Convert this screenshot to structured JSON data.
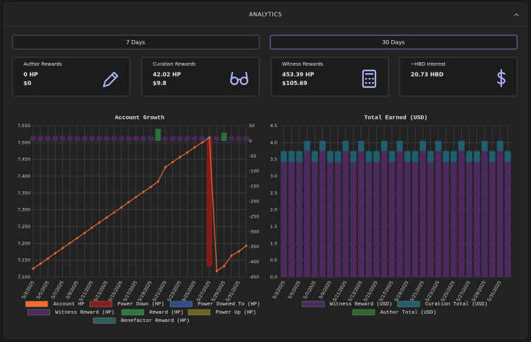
{
  "header": {
    "title": "ANALYTICS"
  },
  "tabs": [
    "7 Days",
    "30 Days"
  ],
  "cards": [
    {
      "title": "Author Rewards",
      "lines": [
        "0 HP",
        "$0"
      ]
    },
    {
      "title": "Curation Rewards",
      "lines": [
        "42.02 HP",
        "$9.8"
      ]
    },
    {
      "title": "Witness Rewards",
      "lines": [
        "453.39 HP",
        "$105.69"
      ]
    },
    {
      "title": "~HBD Interest",
      "lines": [
        "20.73 HBD"
      ]
    }
  ],
  "chart_data": [
    {
      "type": "combo",
      "title": "Account Growth",
      "categories": [
        "5/3/2025",
        null,
        "5/5/2025",
        null,
        "5/7/2025",
        null,
        "5/9/2025",
        null,
        "5/11/2025",
        null,
        "5/13/2025",
        null,
        "5/15/2025",
        null,
        "5/17/2025",
        null,
        "5/19/2025",
        null,
        "5/21/2025",
        null,
        "5/23/2025",
        null,
        "5/25/2025",
        null,
        "5/27/2025",
        null,
        "5/29/2025",
        null,
        "5/31/2025",
        null
      ],
      "series": [
        {
          "name": "Account HP",
          "color": "#f26b2a",
          "type": "line",
          "values": [
            7125,
            7140,
            7155,
            7171,
            7186,
            7201,
            7216,
            7231,
            7247,
            7262,
            7277,
            7292,
            7307,
            7323,
            7338,
            7353,
            7368,
            7384,
            7427,
            7442,
            7457,
            7471,
            7486,
            7500,
            7515,
            7118,
            7133,
            7164,
            7176,
            7193
          ]
        },
        {
          "name": "Power Down (HP)",
          "color": "#8b1c1c",
          "type": "bar",
          "axis": "y2",
          "values": [
            0,
            0,
            0,
            0,
            0,
            0,
            0,
            0,
            0,
            0,
            0,
            0,
            0,
            0,
            0,
            0,
            0,
            0,
            0,
            0,
            0,
            0,
            0,
            0,
            -415,
            0,
            0,
            0,
            0,
            0
          ]
        },
        {
          "name": "Power Downed To (HP)",
          "color": "#2d4b8e",
          "type": "bar",
          "axis": "y2",
          "values": [
            0,
            0,
            0,
            0,
            0,
            0,
            0,
            0,
            0,
            0,
            0,
            0,
            0,
            0,
            0,
            0,
            0,
            0,
            0,
            0,
            0,
            0,
            0,
            0,
            0,
            0,
            0,
            0,
            0,
            0
          ]
        },
        {
          "name": "Witness Reward (HP)",
          "color": "#4c2a5e",
          "type": "bar",
          "axis": "y2",
          "values": [
            15,
            15,
            15,
            15,
            15,
            15,
            15,
            15,
            15,
            15,
            15,
            15,
            15,
            15,
            15,
            15,
            15,
            15,
            15,
            15,
            15,
            15,
            15,
            15,
            15,
            15,
            15,
            15,
            15,
            15
          ]
        },
        {
          "name": "Reward (HP)",
          "color": "#2a7a3c",
          "type": "bar",
          "axis": "y2",
          "values": [
            0,
            0,
            0,
            0,
            0,
            0,
            0,
            0,
            0,
            0,
            0,
            0,
            0,
            0,
            0,
            0,
            0,
            40,
            0,
            0,
            0,
            0,
            0,
            0,
            0,
            0,
            27,
            0,
            0,
            0
          ]
        },
        {
          "name": "Power Up (HP)",
          "color": "#6b6422",
          "type": "bar",
          "axis": "y2",
          "values": [
            0,
            0,
            0,
            0,
            0,
            0,
            0,
            0,
            0,
            0,
            0,
            0,
            0,
            0,
            0,
            0,
            0,
            0,
            0,
            0,
            0,
            0,
            0,
            0,
            0,
            0,
            0,
            0,
            0,
            0
          ]
        },
        {
          "name": "Benefactor Reward (HP)",
          "color": "#2f5b56",
          "type": "bar",
          "axis": "y2",
          "values": [
            0,
            0,
            0,
            0,
            0,
            0,
            0,
            0,
            0,
            0,
            0,
            0,
            0,
            0,
            0,
            0,
            0,
            0,
            0,
            0,
            0,
            0,
            0,
            0,
            0,
            0,
            0,
            0,
            0,
            0
          ]
        }
      ],
      "ylim": [
        7100,
        7550
      ],
      "yticks": [
        {
          "value": 7100,
          "label": "7,100"
        },
        {
          "value": 7150,
          "label": "7,150"
        },
        {
          "value": 7200,
          "label": "7,200"
        },
        {
          "value": 7250,
          "label": "7,250"
        },
        {
          "value": 7300,
          "label": "7,300"
        },
        {
          "value": 7350,
          "label": "7,350"
        },
        {
          "value": 7400,
          "label": "7,400"
        },
        {
          "value": 7450,
          "label": "7,450"
        },
        {
          "value": 7500,
          "label": "7,500"
        },
        {
          "value": 7550,
          "label": "7,550"
        }
      ],
      "y2lim": [
        -450,
        50
      ],
      "y2ticks": [
        -450,
        -400,
        -350,
        -300,
        -250,
        -200,
        -150,
        -100,
        -50,
        0,
        50
      ],
      "grid": true
    },
    {
      "type": "stacked_bar",
      "title": "Total Earned (USD)",
      "categories": [
        "5/3/2025",
        null,
        "5/5/2025",
        null,
        "5/7/2025",
        null,
        "5/9/2025",
        null,
        "5/11/2025",
        null,
        "5/13/2025",
        null,
        "5/15/2025",
        null,
        "5/17/2025",
        null,
        "5/19/2025",
        null,
        "5/21/2025",
        null,
        "5/23/2025",
        null,
        "5/25/2025",
        null,
        "5/27/2025",
        null,
        "5/29/2025",
        null,
        "5/31/2025",
        null
      ],
      "series": [
        {
          "name": "Witness Reward (USD)",
          "color": "#4c2a5e",
          "values": [
            3.42,
            3.42,
            3.42,
            3.75,
            3.42,
            3.75,
            3.42,
            3.42,
            3.75,
            3.42,
            3.75,
            3.42,
            3.42,
            3.75,
            3.42,
            3.75,
            3.42,
            3.42,
            3.75,
            3.42,
            3.75,
            3.42,
            3.42,
            3.75,
            3.42,
            3.42,
            3.75,
            3.42,
            3.75,
            3.42
          ]
        },
        {
          "name": "Curation Total (USD)",
          "color": "#1f5e6e",
          "values": [
            0.33,
            0.33,
            0.33,
            0.3,
            0.33,
            0.3,
            0.33,
            0.33,
            0.3,
            0.33,
            0.3,
            0.33,
            0.33,
            0.3,
            0.33,
            0.3,
            0.33,
            0.33,
            0.3,
            0.33,
            0.3,
            0.33,
            0.33,
            0.3,
            0.33,
            0.33,
            0.3,
            0.33,
            0.3,
            0.33
          ]
        },
        {
          "name": "Author Total (USD)",
          "color": "#2a6a2a",
          "values": [
            0,
            0,
            0,
            0,
            0,
            0,
            0,
            0,
            0,
            0,
            0,
            0,
            0,
            0,
            0,
            0,
            0,
            0,
            0,
            0,
            0,
            0,
            0,
            0,
            0,
            0,
            0,
            0,
            0,
            0
          ]
        }
      ],
      "ylim": [
        0,
        4.5
      ],
      "yticks": [
        {
          "value": 0,
          "label": "0.0"
        },
        0.5,
        {
          "value": 1,
          "label": "1.0"
        },
        1.5,
        {
          "value": 2,
          "label": "2.0"
        },
        2.5,
        {
          "value": 3,
          "label": "3.0"
        },
        3.5,
        {
          "value": 4,
          "label": "4.0"
        },
        4.5
      ],
      "grid": true
    }
  ]
}
